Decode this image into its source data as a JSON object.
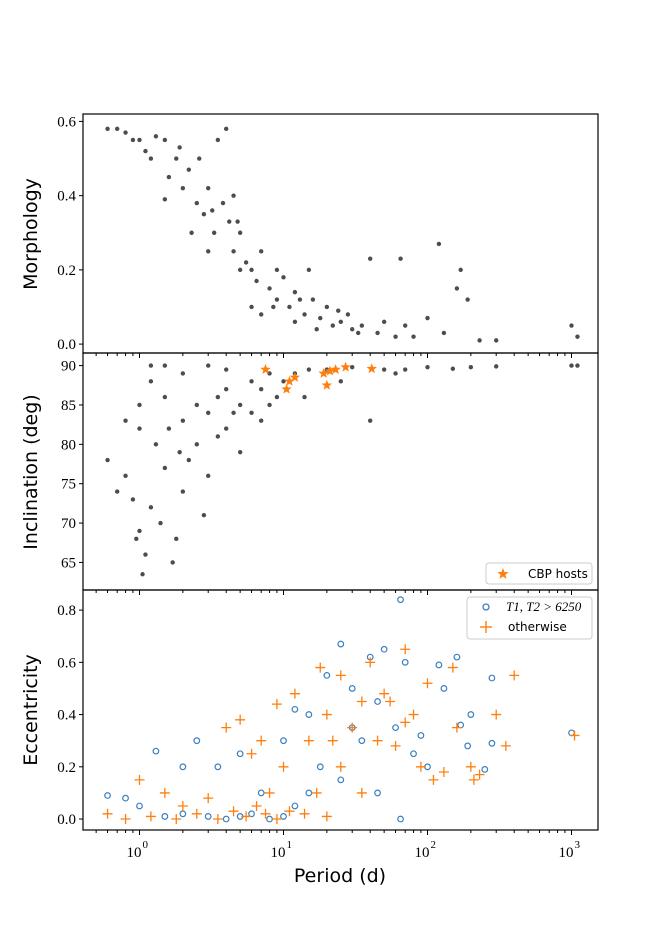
{
  "chart_data": [
    {
      "type": "scatter",
      "panel": "top",
      "ylabel": "Morphology",
      "xscale": "log",
      "xlim": [
        0.41,
        1500
      ],
      "ylim": [
        -0.024,
        0.62
      ],
      "yticks": [
        "0.0",
        "0.2",
        "0.4",
        "0.6"
      ],
      "ytick_values": [
        0,
        0.2,
        0.4,
        0.6
      ],
      "color": "#4d4d4d",
      "series": [
        {
          "name": "all",
          "points": [
            [
              0.6,
              0.58
            ],
            [
              0.7,
              0.58
            ],
            [
              0.8,
              0.57
            ],
            [
              0.9,
              0.55
            ],
            [
              1.0,
              0.55
            ],
            [
              1.1,
              0.52
            ],
            [
              1.2,
              0.5
            ],
            [
              1.3,
              0.56
            ],
            [
              1.5,
              0.55
            ],
            [
              1.6,
              0.45
            ],
            [
              1.8,
              0.5
            ],
            [
              2.0,
              0.42
            ],
            [
              2.2,
              0.47
            ],
            [
              2.5,
              0.38
            ],
            [
              2.8,
              0.35
            ],
            [
              3.0,
              0.42
            ],
            [
              3.3,
              0.3
            ],
            [
              3.5,
              0.55
            ],
            [
              3.8,
              0.38
            ],
            [
              4.0,
              0.58
            ],
            [
              4.2,
              0.33
            ],
            [
              4.5,
              0.25
            ],
            [
              5,
              0.3
            ],
            [
              5.5,
              0.22
            ],
            [
              6,
              0.2
            ],
            [
              6.5,
              0.17
            ],
            [
              7,
              0.25
            ],
            [
              8,
              0.15
            ],
            [
              9,
              0.12
            ],
            [
              10,
              0.18
            ],
            [
              11,
              0.1
            ],
            [
              12,
              0.14
            ],
            [
              14,
              0.08
            ],
            [
              15,
              0.2
            ],
            [
              16,
              0.12
            ],
            [
              18,
              0.07
            ],
            [
              20,
              0.1
            ],
            [
              22,
              0.05
            ],
            [
              25,
              0.06
            ],
            [
              28,
              0.08
            ],
            [
              30,
              0.04
            ],
            [
              35,
              0.05
            ],
            [
              40,
              0.23
            ],
            [
              45,
              0.03
            ],
            [
              50,
              0.06
            ],
            [
              60,
              0.02
            ],
            [
              65,
              0.23
            ],
            [
              70,
              0.05
            ],
            [
              80,
              0.02
            ],
            [
              100,
              0.07
            ],
            [
              120,
              0.27
            ],
            [
              130,
              0.03
            ],
            [
              160,
              0.15
            ],
            [
              170,
              0.2
            ],
            [
              190,
              0.12
            ],
            [
              230,
              0.01
            ],
            [
              300,
              0.01
            ],
            [
              1000,
              0.05
            ],
            [
              1100,
              0.02
            ],
            [
              1.5,
              0.39
            ],
            [
              2.3,
              0.3
            ],
            [
              3,
              0.25
            ],
            [
              4.5,
              0.4
            ],
            [
              5,
              0.2
            ],
            [
              6,
              0.1
            ],
            [
              7,
              0.08
            ],
            [
              9,
              0.2
            ],
            [
              12,
              0.06
            ],
            [
              1.9,
              0.53
            ],
            [
              2.6,
              0.5
            ],
            [
              3.2,
              0.36
            ],
            [
              4.8,
              0.33
            ],
            [
              8.5,
              0.1
            ],
            [
              13,
              0.12
            ],
            [
              17,
              0.04
            ],
            [
              24,
              0.09
            ],
            [
              33,
              0.03
            ]
          ]
        }
      ]
    },
    {
      "type": "scatter",
      "panel": "middle",
      "ylabel": "Inclination (deg)",
      "xscale": "log",
      "xlim": [
        0.41,
        1500
      ],
      "ylim": [
        61.5,
        91.6
      ],
      "yticks": [
        "65",
        "70",
        "75",
        "80",
        "85",
        "90"
      ],
      "ytick_values": [
        65,
        70,
        75,
        80,
        85,
        90
      ],
      "legend": {
        "position": "lower right",
        "entries": [
          "CBP hosts"
        ]
      },
      "series": [
        {
          "name": "all",
          "color": "#4d4d4d",
          "points": [
            [
              0.6,
              78
            ],
            [
              0.7,
              74
            ],
            [
              0.8,
              76
            ],
            [
              0.9,
              73
            ],
            [
              0.95,
              68
            ],
            [
              1.0,
              69
            ],
            [
              1.05,
              63.5
            ],
            [
              1.1,
              66
            ],
            [
              1.2,
              72
            ],
            [
              1.3,
              80
            ],
            [
              1.4,
              70
            ],
            [
              1.5,
              77
            ],
            [
              1.6,
              82
            ],
            [
              1.7,
              65
            ],
            [
              1.8,
              68
            ],
            [
              2,
              83
            ],
            [
              2.2,
              78
            ],
            [
              2.5,
              85
            ],
            [
              3,
              84
            ],
            [
              3.5,
              86
            ],
            [
              4,
              87
            ],
            [
              5,
              85
            ],
            [
              6,
              88
            ],
            [
              7,
              87
            ],
            [
              8,
              89
            ],
            [
              10,
              88
            ],
            [
              12,
              89
            ],
            [
              15,
              89.5
            ],
            [
              20,
              89.5
            ],
            [
              30,
              89.8
            ],
            [
              40,
              83
            ],
            [
              50,
              89.5
            ],
            [
              70,
              89.5
            ],
            [
              100,
              89.8
            ],
            [
              200,
              89.8
            ],
            [
              300,
              89.9
            ],
            [
              1000,
              90
            ],
            [
              1100,
              90
            ],
            [
              1.0,
              85
            ],
            [
              1.2,
              88
            ],
            [
              1.5,
              86
            ],
            [
              2,
              74
            ],
            [
              2.5,
              80
            ],
            [
              3,
              76
            ],
            [
              3.5,
              81
            ],
            [
              4,
              82
            ],
            [
              5,
              79
            ],
            [
              6,
              84
            ],
            [
              7,
              83
            ],
            [
              9,
              86
            ],
            [
              1.2,
              90
            ],
            [
              1.5,
              90
            ],
            [
              2,
              89
            ],
            [
              3,
              90
            ],
            [
              4,
              89.5
            ],
            [
              1,
              82
            ],
            [
              0.8,
              83
            ],
            [
              2.8,
              71
            ],
            [
              1.9,
              79
            ],
            [
              4.5,
              84
            ],
            [
              8,
              85
            ],
            [
              14,
              86
            ],
            [
              25,
              88
            ],
            [
              60,
              89
            ],
            [
              150,
              89.6
            ]
          ]
        },
        {
          "name": "CBP hosts",
          "color": "#ff7f0e",
          "marker": "star",
          "points": [
            [
              7.5,
              89.5
            ],
            [
              10.5,
              87
            ],
            [
              11,
              88
            ],
            [
              12,
              88.5
            ],
            [
              19,
              89
            ],
            [
              20,
              87.5
            ],
            [
              21,
              89.3
            ],
            [
              23,
              89.5
            ],
            [
              27,
              89.8
            ],
            [
              41,
              89.6
            ]
          ]
        }
      ]
    },
    {
      "type": "scatter",
      "panel": "bottom",
      "xlabel": "Period (d)",
      "ylabel": "Eccentricity",
      "xscale": "log",
      "xlim": [
        0.41,
        1500
      ],
      "ylim": [
        -0.042,
        0.877
      ],
      "xticks": [
        "0",
        "1",
        "2",
        "3"
      ],
      "xtick_values": [
        1,
        10,
        100,
        1000
      ],
      "yticks": [
        "0.0",
        "0.2",
        "0.4",
        "0.6",
        "0.8"
      ],
      "ytick_values": [
        0,
        0.2,
        0.4,
        0.6,
        0.8
      ],
      "legend": {
        "position": "top-right",
        "entries": [
          "T1, T2 > 6250",
          "otherwise"
        ]
      },
      "series": [
        {
          "name": "T1, T2 > 6250",
          "color": "#3a7fc1",
          "marker": "circle",
          "points": [
            [
              0.6,
              0.09
            ],
            [
              0.8,
              0.08
            ],
            [
              1.0,
              0.05
            ],
            [
              1.3,
              0.26
            ],
            [
              2,
              0.2
            ],
            [
              2.5,
              0.3
            ],
            [
              3.5,
              0.2
            ],
            [
              5,
              0.25
            ],
            [
              7,
              0.1
            ],
            [
              10,
              0.3
            ],
            [
              15,
              0.4
            ],
            [
              20,
              0.55
            ],
            [
              25,
              0.67
            ],
            [
              30,
              0.5
            ],
            [
              40,
              0.62
            ],
            [
              45,
              0.45
            ],
            [
              50,
              0.65
            ],
            [
              60,
              0.35
            ],
            [
              65,
              0.84
            ],
            [
              70,
              0.6
            ],
            [
              80,
              0.25
            ],
            [
              100,
              0.2
            ],
            [
              120,
              0.59
            ],
            [
              130,
              0.5
            ],
            [
              160,
              0.62
            ],
            [
              170,
              0.36
            ],
            [
              190,
              0.28
            ],
            [
              200,
              0.4
            ],
            [
              250,
              0.19
            ],
            [
              280,
              0.29
            ],
            [
              280,
              0.54
            ],
            [
              1000,
              0.33
            ],
            [
              1.5,
              0.01
            ],
            [
              2,
              0.02
            ],
            [
              3,
              0.01
            ],
            [
              4,
              0.0
            ],
            [
              5,
              0.01
            ],
            [
              6,
              0.02
            ],
            [
              8,
              0.0
            ],
            [
              10,
              0.01
            ],
            [
              12,
              0.05
            ],
            [
              15,
              0.1
            ],
            [
              18,
              0.2
            ],
            [
              25,
              0.15
            ],
            [
              35,
              0.3
            ],
            [
              45,
              0.1
            ],
            [
              65,
              0.0
            ],
            [
              90,
              0.32
            ],
            [
              30,
              0.35
            ],
            [
              12,
              0.42
            ]
          ]
        },
        {
          "name": "otherwise",
          "color": "#ff7f0e",
          "marker": "plus",
          "points": [
            [
              0.6,
              0.02
            ],
            [
              0.8,
              0.0
            ],
            [
              1.0,
              0.15
            ],
            [
              1.5,
              0.1
            ],
            [
              2,
              0.05
            ],
            [
              3,
              0.08
            ],
            [
              4,
              0.35
            ],
            [
              5,
              0.38
            ],
            [
              6,
              0.25
            ],
            [
              7,
              0.3
            ],
            [
              8,
              0.1
            ],
            [
              9,
              0.44
            ],
            [
              10,
              0.2
            ],
            [
              12,
              0.48
            ],
            [
              15,
              0.3
            ],
            [
              18,
              0.58
            ],
            [
              20,
              0.4
            ],
            [
              25,
              0.55
            ],
            [
              30,
              0.35
            ],
            [
              35,
              0.45
            ],
            [
              40,
              0.6
            ],
            [
              45,
              0.3
            ],
            [
              50,
              0.48
            ],
            [
              60,
              0.28
            ],
            [
              70,
              0.65
            ],
            [
              80,
              0.4
            ],
            [
              90,
              0.2
            ],
            [
              100,
              0.52
            ],
            [
              110,
              0.15
            ],
            [
              130,
              0.18
            ],
            [
              150,
              0.58
            ],
            [
              160,
              0.35
            ],
            [
              200,
              0.2
            ],
            [
              210,
              0.15
            ],
            [
              230,
              0.17
            ],
            [
              300,
              0.4
            ],
            [
              350,
              0.28
            ],
            [
              400,
              0.55
            ],
            [
              1050,
              0.32
            ],
            [
              1.2,
              0.01
            ],
            [
              1.8,
              0.0
            ],
            [
              2.5,
              0.02
            ],
            [
              3.5,
              0.0
            ],
            [
              4.5,
              0.03
            ],
            [
              5.5,
              0.01
            ],
            [
              6.5,
              0.05
            ],
            [
              7.5,
              0.02
            ],
            [
              9,
              0.0
            ],
            [
              11,
              0.03
            ],
            [
              14,
              0.02
            ],
            [
              20,
              0.01
            ],
            [
              25,
              0.2
            ],
            [
              35,
              0.1
            ],
            [
              55,
              0.45
            ],
            [
              70,
              0.37
            ],
            [
              17,
              0.1
            ],
            [
              22,
              0.3
            ]
          ]
        }
      ]
    }
  ],
  "labels": {
    "top_ylabel": "Morphology",
    "mid_ylabel": "Inclination (deg)",
    "bot_ylabel": "Eccentricity",
    "xlabel": "Period (d)",
    "x_tick_base": "10",
    "legend_cbp": "CBP hosts",
    "legend_hot": "T1, T2 > 6250",
    "legend_other": "otherwise"
  }
}
